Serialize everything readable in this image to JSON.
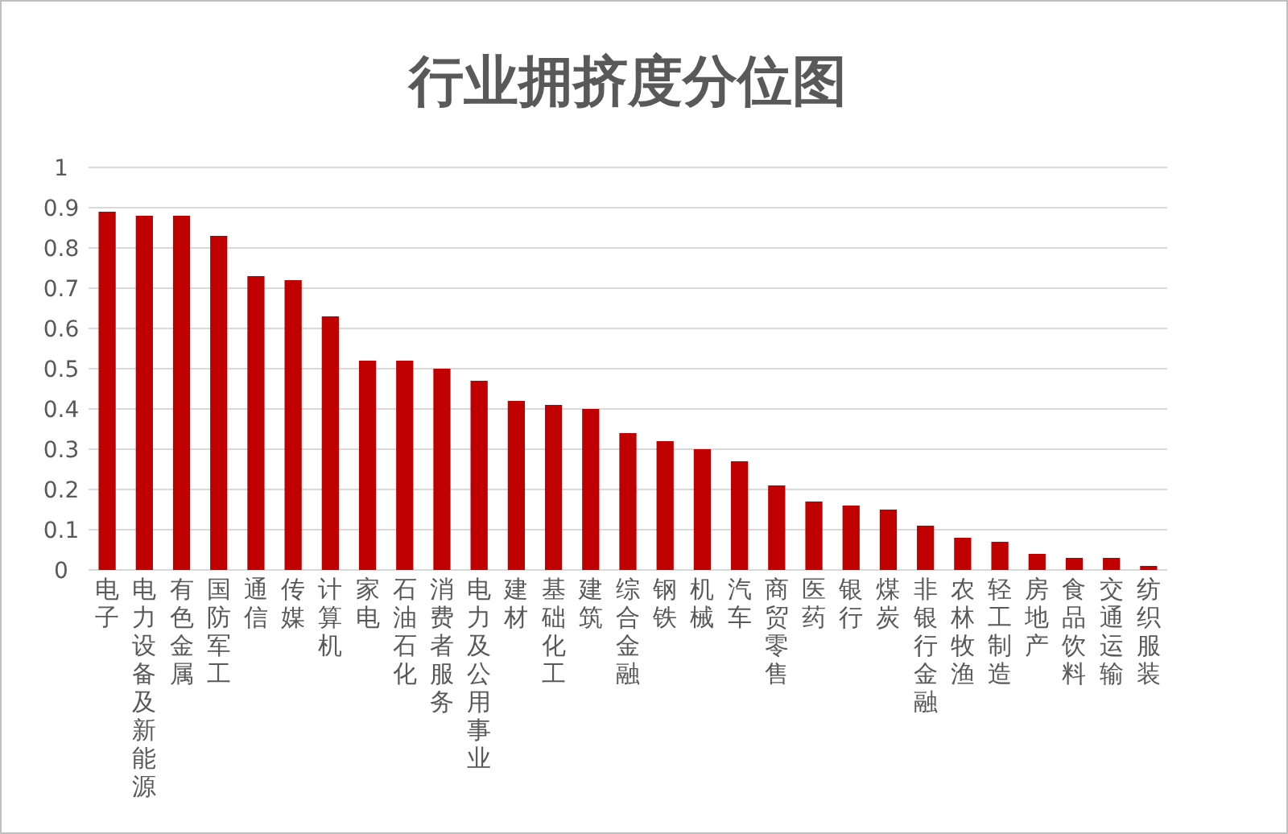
{
  "chart_data": {
    "type": "bar",
    "title": "行业拥挤度分位图",
    "categories": [
      "电子",
      "电力设备及新能源",
      "有色金属",
      "国防军工",
      "通信",
      "传媒",
      "计算机",
      "家电",
      "石油石化",
      "消费者服务",
      "电力及公用事业",
      "建材",
      "基础化工",
      "建筑",
      "综合金融",
      "钢铁",
      "机械",
      "汽车",
      "商贸零售",
      "医药",
      "银行",
      "煤炭",
      "非银行金融",
      "农林牧渔",
      "轻工制造",
      "房地产",
      "食品饮料",
      "交通运输",
      "纺织服装"
    ],
    "values": [
      0.89,
      0.88,
      0.88,
      0.83,
      0.73,
      0.72,
      0.63,
      0.52,
      0.52,
      0.5,
      0.47,
      0.42,
      0.41,
      0.4,
      0.34,
      0.32,
      0.3,
      0.27,
      0.21,
      0.17,
      0.16,
      0.15,
      0.11,
      0.08,
      0.07,
      0.04,
      0.03,
      0.03,
      0.01
    ],
    "color": "#c00000",
    "ylim": [
      0,
      1
    ],
    "yticks": [
      0,
      0.1,
      0.2,
      0.3,
      0.4,
      0.5,
      0.6,
      0.7,
      0.8,
      0.9,
      1
    ],
    "grid": "y"
  }
}
